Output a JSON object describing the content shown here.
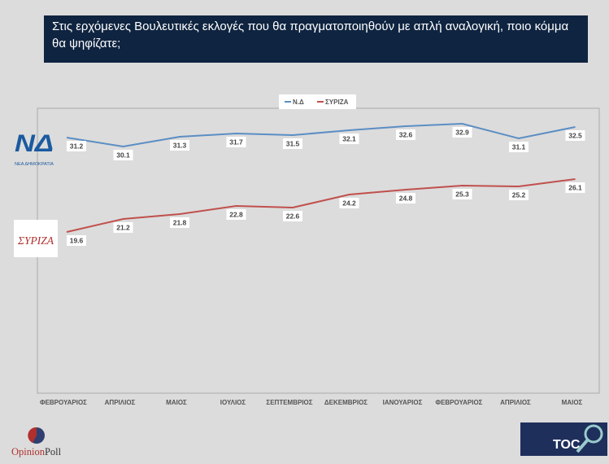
{
  "title": "Στις ερχόμενες Βουλευτικές εκλογές που θα πραγματοποιηθούν με απλή αναλογική, ποιο κόμμα θα ψηφίζατε;",
  "chart_data": {
    "type": "line",
    "categories": [
      "ΦΕΒΡΟΥΑΡΙΟΣ",
      "ΑΠΡΙΛΙΟΣ",
      "ΜΑΙΟΣ",
      "ΙΟΥΛΙΟΣ",
      "ΣΕΠΤΕΜΒΡΙΟΣ",
      "ΔΕΚΕΜΒΡΙΟΣ",
      "ΙΑΝΟΥΑΡΙΟΣ",
      "ΦΕΒΡΟΥΑΡΙΟΣ",
      "ΑΠΡΙΛΙΟΣ",
      "ΜΑΙΟΣ"
    ],
    "series": [
      {
        "name": "Ν.Δ",
        "color": "#5b8ec4",
        "values": [
          31.2,
          30.1,
          31.3,
          31.7,
          31.5,
          32.1,
          32.6,
          32.9,
          31.1,
          32.5
        ]
      },
      {
        "name": "ΣΥΡΙΖΑ",
        "color": "#c0504d",
        "values": [
          19.6,
          21.2,
          21.8,
          22.8,
          22.6,
          24.2,
          24.8,
          25.3,
          25.2,
          26.1
        ]
      }
    ],
    "legend": "top-center",
    "grid": false,
    "ylim": [
      0,
      35
    ]
  },
  "logos": {
    "nd": "ΝΔ ΝΕΑ ΔΗΜΟΚΡΑΤΙΑ",
    "syriza": "ΣΥΡΙΖΑ",
    "opinion_a": "Opinion",
    "opinion_b": "Poll",
    "top": "THE TOC"
  }
}
